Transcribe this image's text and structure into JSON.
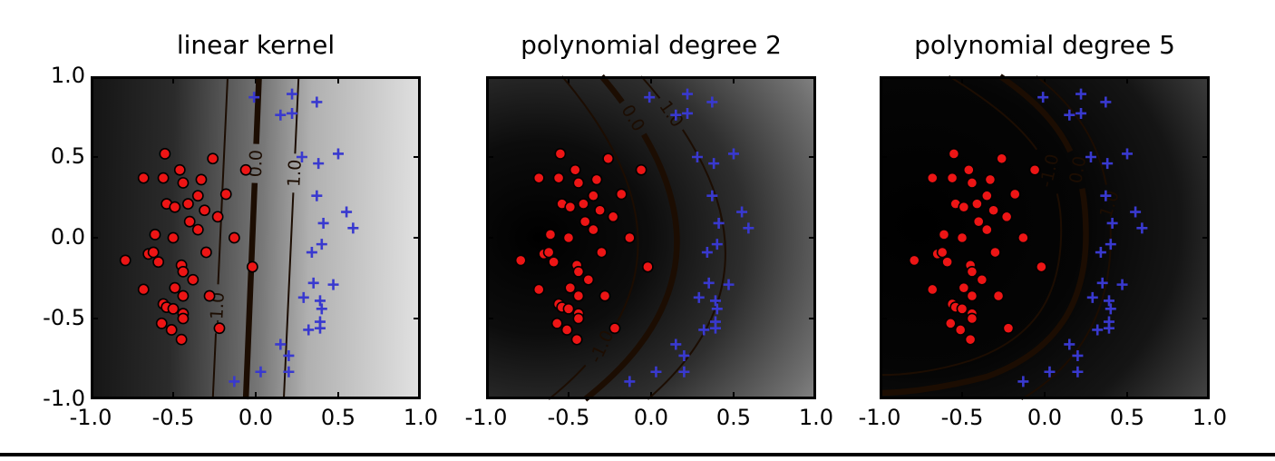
{
  "figure": {
    "bottom_rule_color": "#000000",
    "page_background": "#ffffff"
  },
  "chart_data": {
    "type": "scatter",
    "layout": {
      "subplot_count": 3,
      "grid": false,
      "xlim": [
        -1.0,
        1.0
      ],
      "ylim": [
        -1.0,
        1.0
      ],
      "x_ticks": [
        -1.0,
        -0.5,
        0.0,
        0.5,
        1.0
      ],
      "y_ticks": [
        1.0,
        0.5,
        0.0,
        -0.5,
        -1.0
      ],
      "x_tick_labels": [
        "-1.0",
        "-0.5",
        "0.0",
        "0.5",
        "1.0"
      ],
      "y_tick_labels": [
        "1.0",
        "0.5",
        "0.0",
        "-0.5",
        "-1.0"
      ],
      "y_tick_labels_only_on_first_subplot": true,
      "background_shading": "grayscale decision-function shading, dark = negative side, light = positive side",
      "frame_color": "#000000",
      "contour_color": "#1c0d02"
    },
    "series_shared_across_subplots": true,
    "series": [
      {
        "name": "class red circles",
        "marker": "circle",
        "fill_color": "#ed1515",
        "edge_color": "#000000",
        "points": [
          [
            -0.55,
            0.52
          ],
          [
            -0.26,
            0.49
          ],
          [
            -0.46,
            0.42
          ],
          [
            -0.06,
            0.42
          ],
          [
            -0.68,
            0.37
          ],
          [
            -0.56,
            0.37
          ],
          [
            -0.44,
            0.34
          ],
          [
            -0.33,
            0.36
          ],
          [
            -0.18,
            0.27
          ],
          [
            -0.54,
            0.21
          ],
          [
            -0.49,
            0.19
          ],
          [
            -0.41,
            0.21
          ],
          [
            -0.35,
            0.26
          ],
          [
            -0.31,
            0.17
          ],
          [
            -0.23,
            0.13
          ],
          [
            -0.4,
            0.1
          ],
          [
            -0.35,
            0.05
          ],
          [
            -0.61,
            0.02
          ],
          [
            -0.5,
            0.0
          ],
          [
            -0.3,
            -0.09
          ],
          [
            -0.13,
            0.0
          ],
          [
            -0.79,
            -0.14
          ],
          [
            -0.65,
            -0.1
          ],
          [
            -0.62,
            -0.09
          ],
          [
            -0.59,
            -0.15
          ],
          [
            -0.45,
            -0.17
          ],
          [
            -0.44,
            -0.21
          ],
          [
            -0.38,
            -0.26
          ],
          [
            -0.02,
            -0.18
          ],
          [
            -0.49,
            -0.31
          ],
          [
            -0.68,
            -0.32
          ],
          [
            -0.44,
            -0.36
          ],
          [
            -0.28,
            -0.36
          ],
          [
            -0.56,
            -0.41
          ],
          [
            -0.54,
            -0.43
          ],
          [
            -0.5,
            -0.44
          ],
          [
            -0.44,
            -0.47
          ],
          [
            -0.44,
            -0.5
          ],
          [
            -0.57,
            -0.53
          ],
          [
            -0.51,
            -0.57
          ],
          [
            -0.45,
            -0.63
          ],
          [
            -0.22,
            -0.56
          ]
        ]
      },
      {
        "name": "class blue plus",
        "marker": "plus",
        "fill_color": "#3939cf",
        "points": [
          [
            -0.01,
            0.87
          ],
          [
            0.22,
            0.89
          ],
          [
            0.15,
            0.76
          ],
          [
            0.22,
            0.77
          ],
          [
            0.37,
            0.84
          ],
          [
            0.28,
            0.5
          ],
          [
            0.38,
            0.46
          ],
          [
            0.5,
            0.52
          ],
          [
            0.37,
            0.26
          ],
          [
            0.41,
            0.09
          ],
          [
            0.55,
            0.16
          ],
          [
            0.59,
            0.06
          ],
          [
            0.34,
            -0.09
          ],
          [
            0.4,
            -0.04
          ],
          [
            0.35,
            -0.28
          ],
          [
            0.47,
            -0.29
          ],
          [
            0.29,
            -0.37
          ],
          [
            0.39,
            -0.39
          ],
          [
            0.4,
            -0.44
          ],
          [
            0.39,
            -0.52
          ],
          [
            0.32,
            -0.57
          ],
          [
            0.39,
            -0.56
          ],
          [
            0.15,
            -0.66
          ],
          [
            0.2,
            -0.73
          ],
          [
            0.03,
            -0.83
          ],
          [
            0.2,
            -0.83
          ],
          [
            -0.13,
            -0.89
          ]
        ]
      }
    ],
    "subplots": [
      {
        "title": "linear kernel",
        "background": "linear-gradient(91deg, #141414 0%, #2b2b2b 25%, #787878 52%, #b0b0b0 66%, #e2e2e2 100%)",
        "contours": [
          {
            "level": "-1.0",
            "line_width": 2,
            "path": [
              [
                "M",
                -0.17,
                1
              ],
              [
                "L",
                -0.26,
                -1
              ]
            ],
            "label": {
              "text": "-1.0",
              "t": 0.72,
              "rotation": -87
            }
          },
          {
            "level": "0.0",
            "line_width": 6.5,
            "path": [
              [
                "M",
                0.02,
                1
              ],
              [
                "L",
                -0.06,
                -1
              ]
            ],
            "label": {
              "text": "0.0",
              "t": 0.27,
              "rotation": -88
            }
          },
          {
            "level": "1.0",
            "line_width": 2,
            "path": [
              [
                "M",
                0.26,
                1
              ],
              [
                "L",
                0.17,
                -1
              ]
            ],
            "label": {
              "text": "1.0",
              "t": 0.3,
              "rotation": -87
            }
          }
        ]
      },
      {
        "title": "polynomial degree 2",
        "background": "radial-gradient(ellipse 150% 135% at 16% 50%, #000000 0%, #0c0c0c 22%, #2e2e2e 42%, #6f6f6f 62%, #b5b5b5 80%, #e3e3e3 100%)",
        "contours": [
          {
            "level": "-1.0",
            "line_width": 2,
            "path": [
              [
                "M",
                -0.54,
                1
              ],
              [
                "Q",
                0.42,
                -0.15,
                -0.62,
                -1
              ]
            ],
            "label": {
              "text": "-1.0",
              "t": 0.8,
              "rotation": -65
            }
          },
          {
            "level": "0.0",
            "line_width": 6.5,
            "path": [
              [
                "M",
                -0.3,
                1
              ],
              [
                "Q",
                0.66,
                -0.15,
                -0.4,
                -1
              ]
            ],
            "label": {
              "text": "0.0",
              "t": 0.14,
              "rotation": 58
            }
          },
          {
            "level": "1.0",
            "line_width": 2,
            "path": [
              [
                "M",
                -0.06,
                1
              ],
              [
                "Q",
                0.94,
                -0.15,
                -0.02,
                -1
              ]
            ],
            "label": {
              "text": "1.0",
              "t": 0.13,
              "rotation": 55
            }
          }
        ]
      },
      {
        "title": "polynomial degree 5",
        "background": "radial-gradient(ellipse 165% 150% at 12% 46%, #000000 0%, #050505 30%, #151515 48%, #4a4a4a 66%, #9a9a9a 82%, #e6e6e6 100%)",
        "contours": [
          {
            "level": "-1.0",
            "line_width": 2,
            "path": [
              [
                "M",
                -0.58,
                1
              ],
              [
                "C",
                -0.1,
                0.7,
                0.1,
                0.45,
                0.1,
                0.05
              ],
              [
                "C",
                0.1,
                -0.35,
                -0.05,
                -0.62,
                -0.45,
                -0.76
              ],
              [
                "C",
                -0.7,
                -0.84,
                -0.9,
                -0.85,
                -1,
                -0.85
              ]
            ],
            "label": {
              "text": "-1.0",
              "t": 0.3,
              "rotation": -77
            }
          },
          {
            "level": "0.0",
            "line_width": 6.5,
            "path": [
              [
                "M",
                -0.27,
                1
              ],
              [
                "C",
                0.13,
                0.72,
                0.25,
                0.45,
                0.25,
                0.02
              ],
              [
                "C",
                0.25,
                -0.4,
                0.08,
                -0.7,
                -0.35,
                -0.86
              ],
              [
                "C",
                -0.65,
                -0.94,
                -0.88,
                -0.96,
                -1,
                -0.96
              ]
            ],
            "label": {
              "text": "0.0",
              "t": 0.255,
              "rotation": -80
            }
          },
          {
            "level": "1.0",
            "line_width": 2,
            "path": [
              [
                "M",
                -0.05,
                1
              ],
              [
                "C",
                0.3,
                0.72,
                0.4,
                0.42,
                0.4,
                0.0
              ],
              [
                "C",
                0.4,
                -0.45,
                0.22,
                -0.78,
                -0.14,
                -1.0
              ]
            ],
            "label": {
              "text": "1.0",
              "t": 0.4,
              "rotation": -72
            }
          }
        ]
      }
    ]
  }
}
